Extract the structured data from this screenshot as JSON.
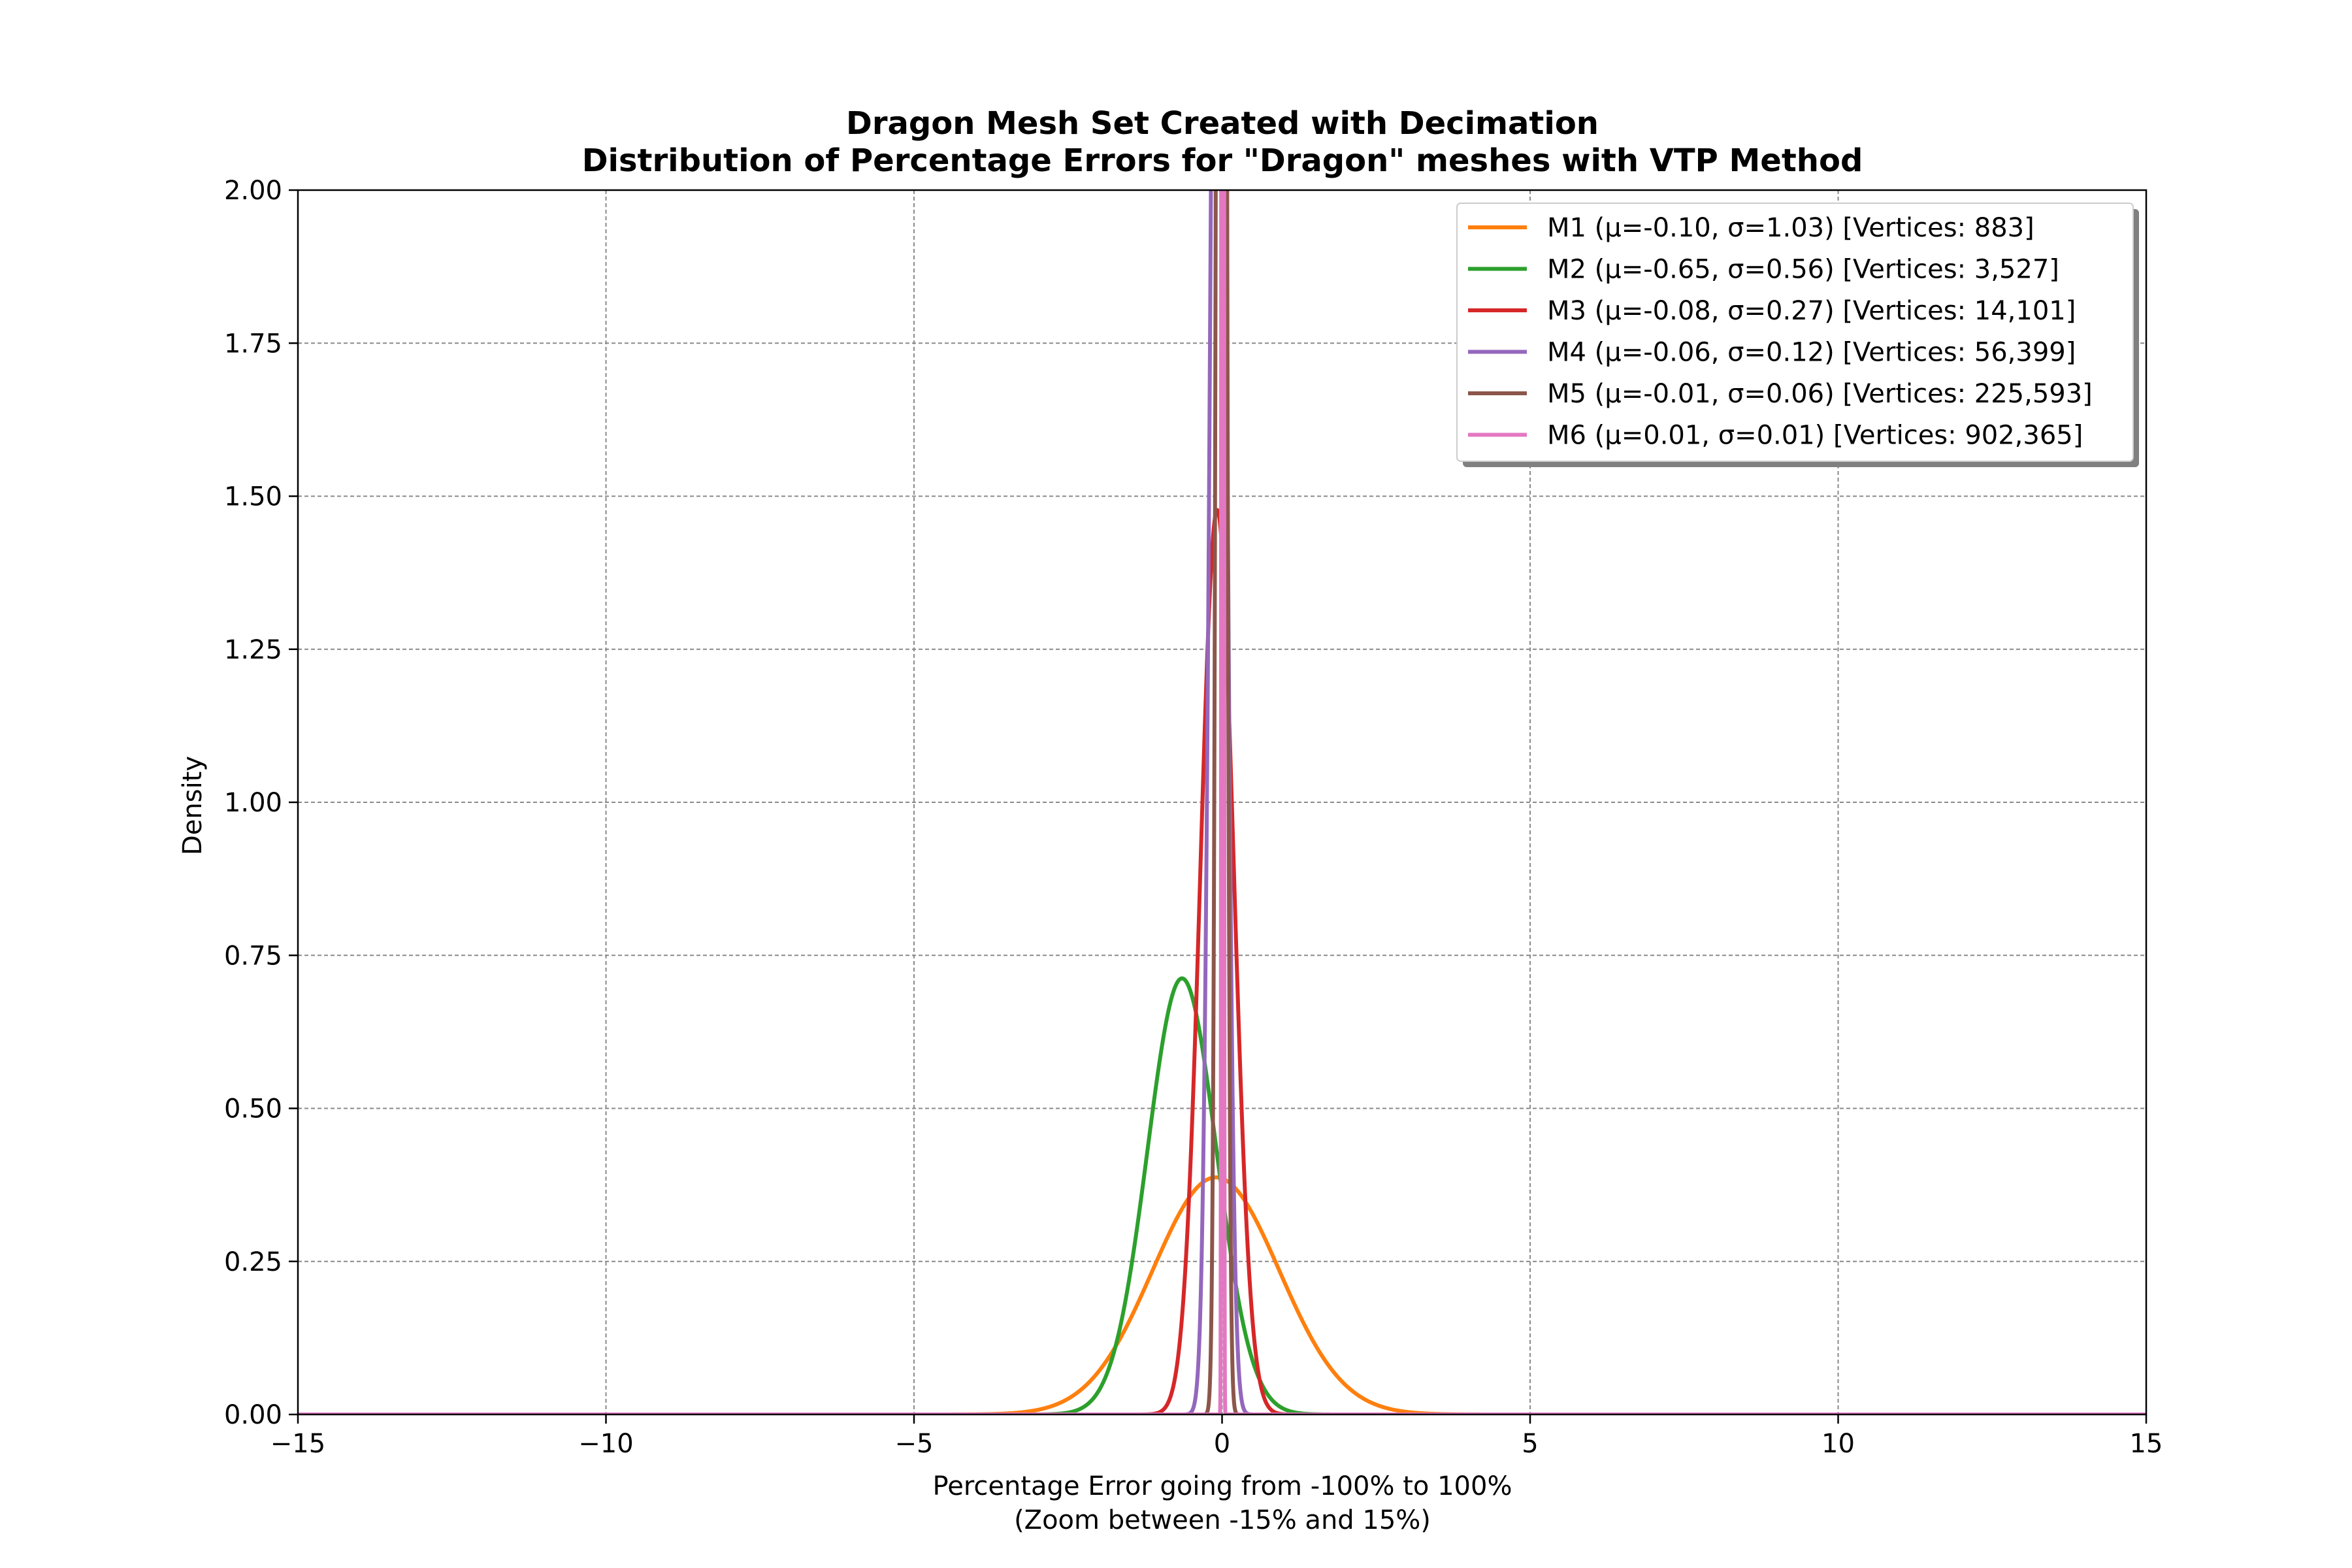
{
  "chart_data": {
    "type": "line",
    "title": "Dragon Mesh Set Created with Decimation",
    "subtitle": "Distribution of Percentage Errors for \"Dragon\" meshes with VTP Method",
    "xlabel": "Percentage Error going from -100% to 100%",
    "xlabel2": "(Zoom between -15% and 15%)",
    "ylabel": "Density",
    "xlim": [
      -15,
      15
    ],
    "ylim": [
      0,
      2
    ],
    "grid": true,
    "legend_position": "top-right",
    "xticks": [
      -15,
      -10,
      -5,
      0,
      5,
      10,
      15
    ],
    "xtick_labels": [
      "−15",
      "−10",
      "−5",
      "0",
      "5",
      "10",
      "15"
    ],
    "yticks": [
      0,
      0.25,
      0.5,
      0.75,
      1.0,
      1.25,
      1.5,
      1.75,
      2.0
    ],
    "ytick_labels": [
      "0.00",
      "0.25",
      "0.50",
      "0.75",
      "1.00",
      "1.25",
      "1.50",
      "1.75",
      "2.00"
    ],
    "series": [
      {
        "name": "M1 (μ=-0.10, σ=1.03) [Vertices: 883]",
        "mu": -0.1,
        "sigma": 1.03,
        "color": "#ff7f0e"
      },
      {
        "name": "M2 (μ=-0.65, σ=0.56) [Vertices: 3,527]",
        "mu": -0.65,
        "sigma": 0.56,
        "color": "#2ca02c"
      },
      {
        "name": "M3 (μ=-0.08, σ=0.27) [Vertices: 14,101]",
        "mu": -0.08,
        "sigma": 0.27,
        "color": "#d62728"
      },
      {
        "name": "M4 (μ=-0.06, σ=0.12) [Vertices: 56,399]",
        "mu": -0.06,
        "sigma": 0.12,
        "color": "#9467bd"
      },
      {
        "name": "M5 (μ=-0.01, σ=0.06) [Vertices: 225,593]",
        "mu": -0.01,
        "sigma": 0.06,
        "color": "#8c564b"
      },
      {
        "name": "M6 (μ=0.01, σ=0.01) [Vertices: 902,365]",
        "mu": 0.01,
        "sigma": 0.01,
        "color": "#e377c2"
      }
    ]
  }
}
